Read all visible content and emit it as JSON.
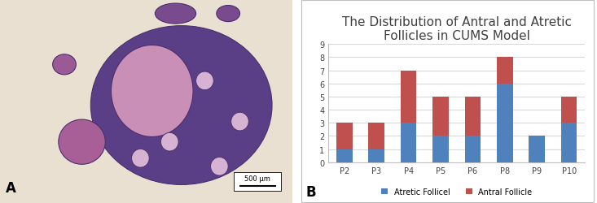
{
  "chart_data": {
    "type": "bar",
    "stacked": true,
    "title": "The Distribution of Antral and Atretic Follicles in CUMS Model",
    "categories": [
      "P2",
      "P3",
      "P4",
      "P5",
      "P6",
      "P8",
      "P9",
      "P10"
    ],
    "series": [
      {
        "name": "Atretic Follicel",
        "color": "#4f81bd",
        "values": [
          1,
          1,
          3,
          2,
          2,
          6,
          2,
          3
        ]
      },
      {
        "name": "Antral Follicle",
        "color": "#c0504d",
        "values": [
          2,
          2,
          4,
          3,
          3,
          2,
          0,
          2
        ]
      }
    ],
    "ylim": [
      0,
      9
    ],
    "yticks": [
      0,
      1,
      2,
      3,
      4,
      5,
      6,
      7,
      8,
      9
    ],
    "grid": true,
    "legend": "lower center"
  },
  "panel_labels": [
    "A",
    "B"
  ],
  "scale_bar": "500 µm"
}
